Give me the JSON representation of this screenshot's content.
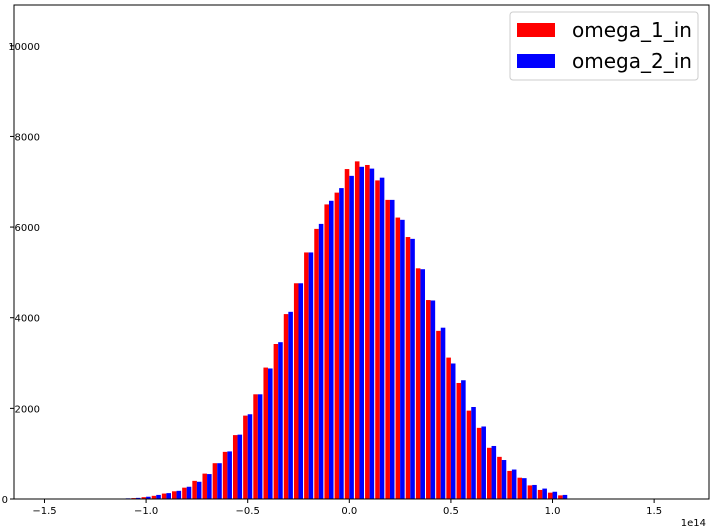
{
  "chart_data": {
    "type": "bar",
    "title": "",
    "xlabel": "",
    "ylabel": "",
    "x_offset_label": "1e14",
    "xlim": [
      -1.65,
      1.77
    ],
    "ylim": [
      0,
      10900
    ],
    "grid": false,
    "legend_position": "top-right",
    "x_ticks": [
      -1.5,
      -1.0,
      -0.5,
      0.0,
      0.5,
      1.0,
      1.5
    ],
    "x_tick_labels": [
      "−1.5",
      "−1.0",
      "−0.5",
      "0.0",
      "0.5",
      "1.0",
      "1.5"
    ],
    "y_ticks": [
      0,
      2000,
      4000,
      6000,
      8000,
      10000
    ],
    "y_tick_labels": [
      "0",
      "2000",
      "4000",
      "6000",
      "8000",
      "10000"
    ],
    "bin_centers": [
      -1.1,
      -1.05,
      -1.0,
      -0.95,
      -0.9,
      -0.85,
      -0.8,
      -0.75,
      -0.7,
      -0.65,
      -0.6,
      -0.55,
      -0.5,
      -0.45,
      -0.4,
      -0.35,
      -0.3,
      -0.25,
      -0.2,
      -0.15,
      -0.1,
      -0.05,
      0.0,
      0.05,
      0.1,
      0.15,
      0.2,
      0.25,
      0.3,
      0.35,
      0.4,
      0.45,
      0.5,
      0.55,
      0.6,
      0.65,
      0.7,
      0.75,
      0.8,
      0.85,
      0.9,
      0.95,
      1.0,
      1.05
    ],
    "series": [
      {
        "name": "omega_1_in",
        "color": "#ff0000",
        "values": [
          10,
          20,
          40,
          70,
          120,
          170,
          250,
          400,
          560,
          790,
          1040,
          1410,
          1840,
          2310,
          2900,
          3420,
          4080,
          4760,
          5440,
          5960,
          6500,
          6760,
          7280,
          7450,
          7370,
          7030,
          6600,
          6210,
          5780,
          5090,
          4390,
          3710,
          3120,
          2560,
          1950,
          1570,
          1130,
          930,
          620,
          470,
          300,
          200,
          140,
          80
        ]
      },
      {
        "name": "omega_2_in",
        "color": "#0000ff",
        "values": [
          15,
          25,
          50,
          90,
          130,
          180,
          270,
          380,
          550,
          790,
          1050,
          1420,
          1870,
          2310,
          2880,
          3460,
          4130,
          4760,
          5440,
          6070,
          6580,
          6860,
          7130,
          7330,
          7290,
          7090,
          6600,
          6160,
          5740,
          5070,
          4380,
          3780,
          2990,
          2620,
          2030,
          1600,
          1170,
          860,
          650,
          460,
          310,
          230,
          160,
          90
        ]
      }
    ]
  }
}
